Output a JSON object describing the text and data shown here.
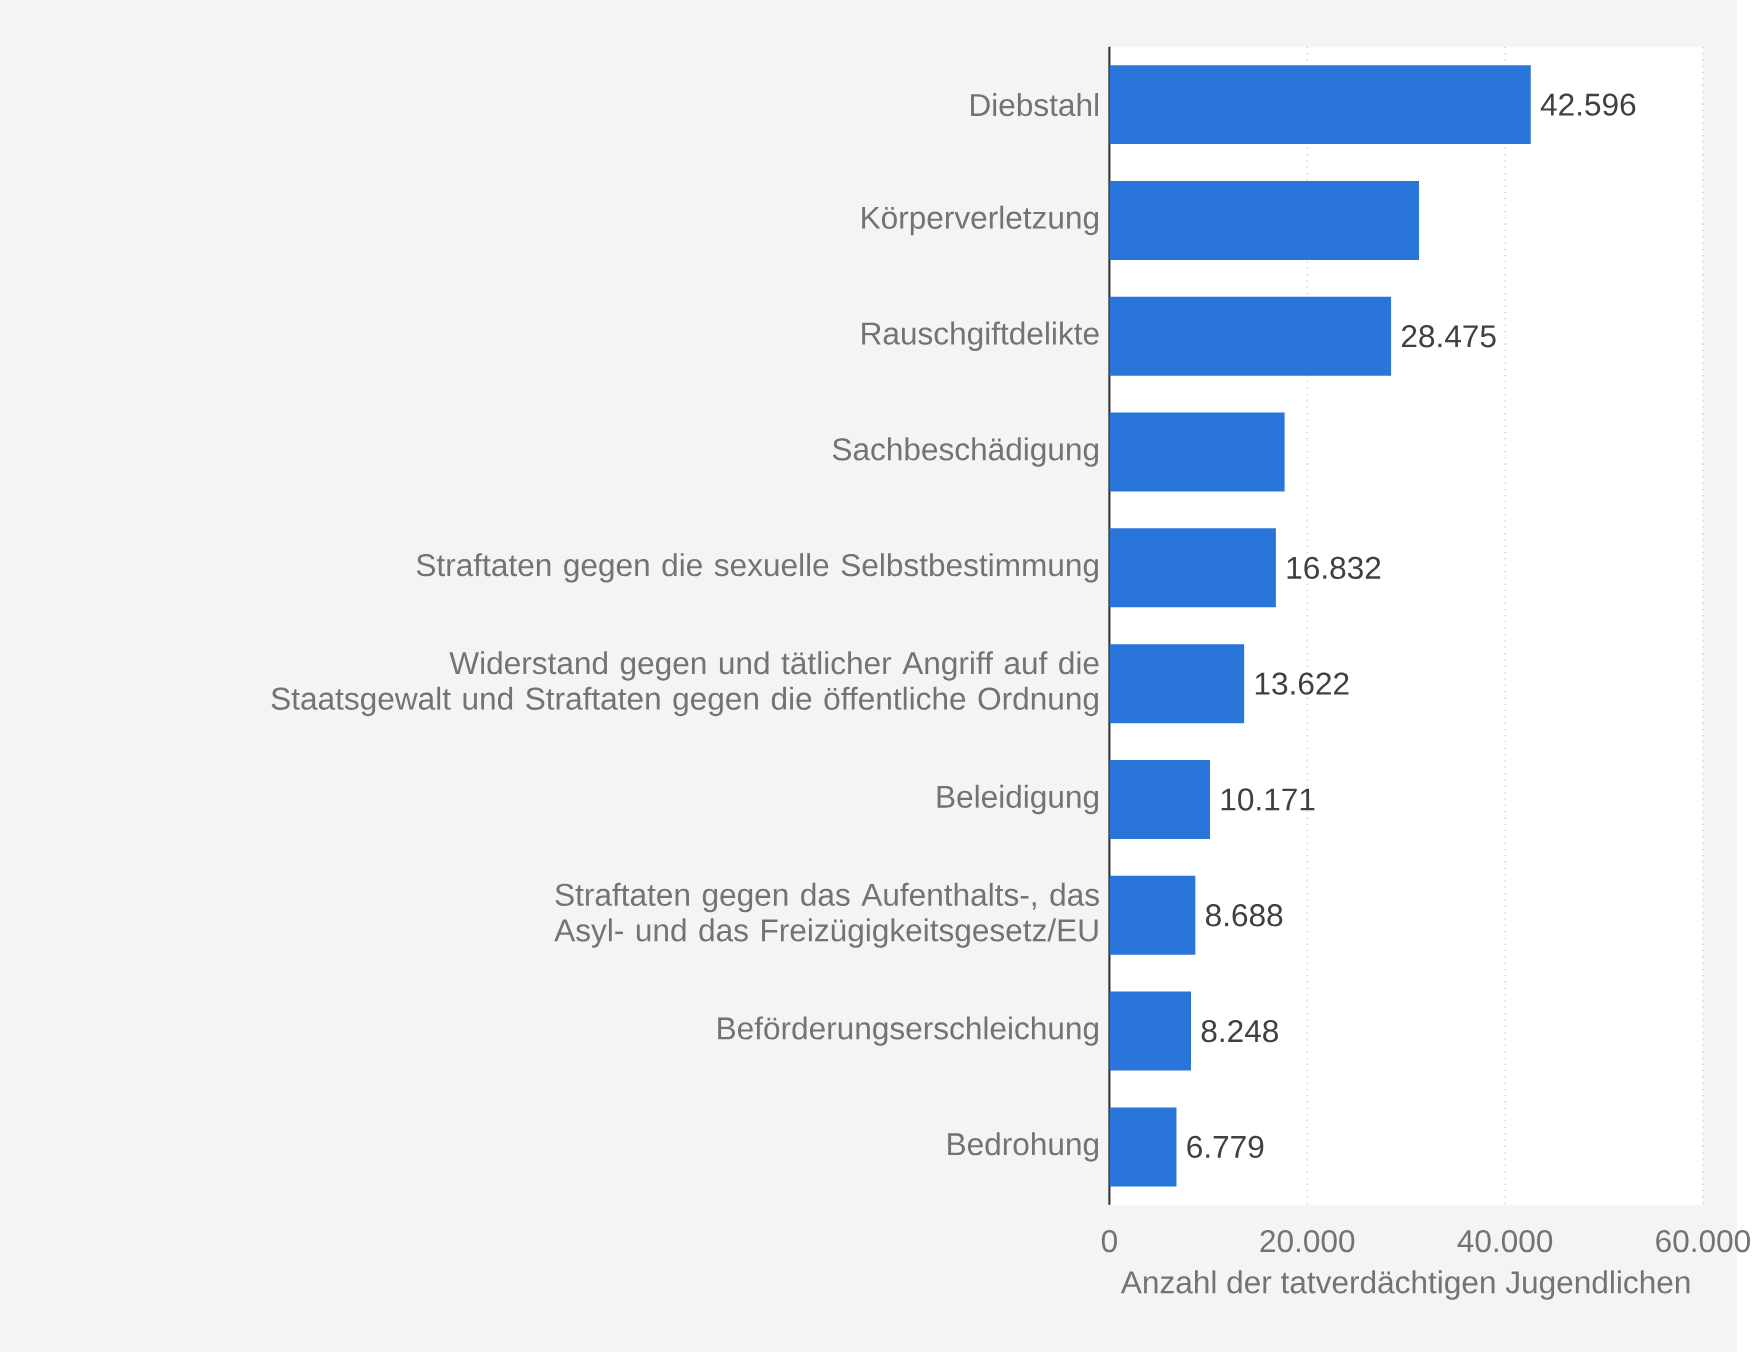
{
  "chart_data": {
    "type": "bar",
    "orientation": "horizontal",
    "xlabel": "Anzahl der tatverdächtigen Jugendlichen",
    "categories": [
      "Diebstahl",
      "Körperverletzung",
      "Rauschgiftdelikte",
      "Sachbeschädigung",
      "Straftaten gegen die sexuelle Selbstbestimmung",
      "Widerstand gegen und tätlicher Angriff auf die Staatsgewalt und Straftaten gegen die öffentliche Ordnung",
      "Beleidigung",
      "Straftaten gegen das Aufenthalts-, das Asyl- und das Freizügigkeitsgesetz/EU",
      "Beförderungserschleichung",
      "Bedrohung"
    ],
    "values": [
      42596,
      31300,
      28475,
      17710,
      16832,
      13622,
      10171,
      8688,
      8248,
      6779
    ],
    "value_labels": [
      "42.596",
      null,
      "28.475",
      null,
      "16.832",
      "13.622",
      "10.171",
      "8.688",
      "8.248",
      "6.779"
    ],
    "color": "#2a75d9",
    "xlim": [
      0,
      60000
    ],
    "xticks": [
      0,
      {
        "value": 20000,
        "label": "20.000"
      },
      {
        "value": 40000,
        "label": "40.000"
      },
      {
        "value": 60000,
        "label": "60.000"
      }
    ],
    "grid": "x"
  }
}
